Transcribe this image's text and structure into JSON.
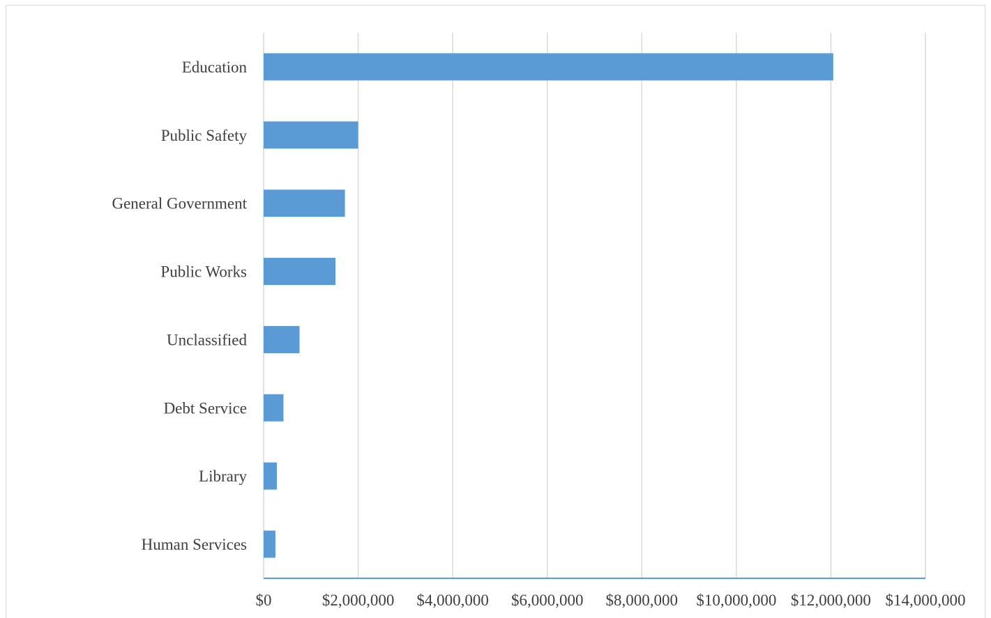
{
  "chart_data": {
    "type": "bar",
    "orientation": "horizontal",
    "title": "",
    "xlabel": "",
    "ylabel": "",
    "categories": [
      "Education",
      "Public Safety",
      "General Government",
      "Public Works",
      "Unclassified",
      "Debt Service",
      "Library",
      "Human Services"
    ],
    "values": [
      12050000,
      2000000,
      1720000,
      1520000,
      760000,
      420000,
      280000,
      250000
    ],
    "xlim": [
      0,
      14000000
    ],
    "x_ticks": [
      0,
      2000000,
      4000000,
      6000000,
      8000000,
      10000000,
      12000000,
      14000000
    ],
    "x_tick_labels": [
      "$0",
      "$2,000,000",
      "$4,000,000",
      "$6,000,000",
      "$8,000,000",
      "$10,000,000",
      "$12,000,000",
      "$14,000,000"
    ],
    "grid": "vertical",
    "legend": "none",
    "bar_color": "#5b9bd5",
    "grid_color": "#d9d9d9",
    "axis_color": "#5b9bd5"
  }
}
